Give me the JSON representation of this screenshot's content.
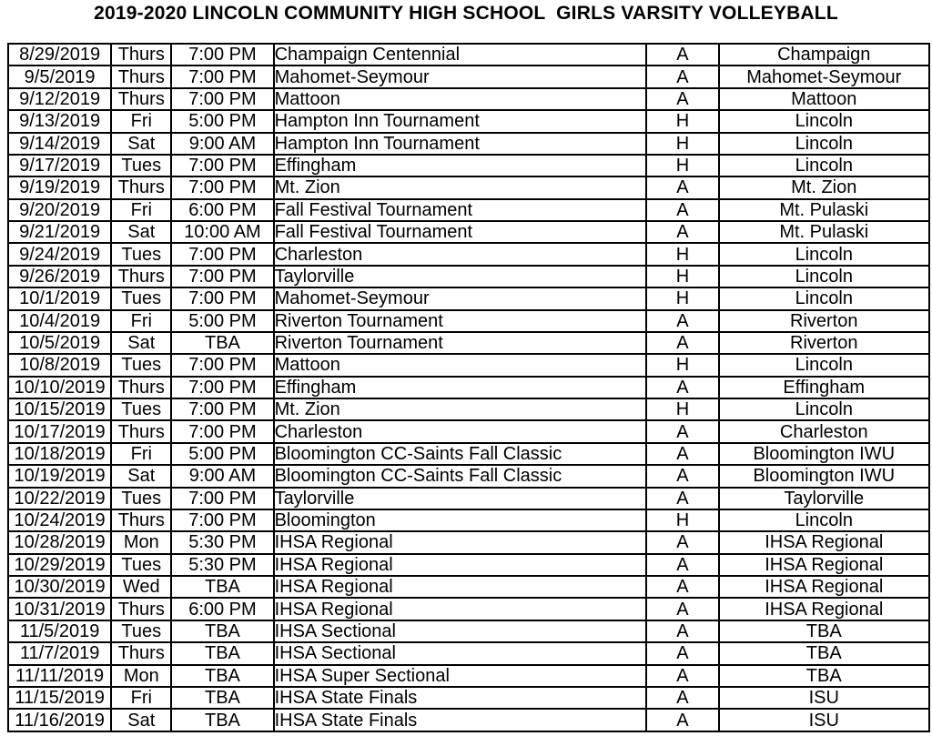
{
  "title": "2019-2020 LINCOLN COMMUNITY HIGH SCHOOL  GIRLS VARSITY VOLLEYBALL",
  "schedule": {
    "rows": [
      [
        "8/29/2019",
        "Thurs",
        "7:00 PM",
        "Champaign Centennial",
        "A",
        "Champaign"
      ],
      [
        "9/5/2019",
        "Thurs",
        "7:00 PM",
        "Mahomet-Seymour",
        "A",
        "Mahomet-Seymour"
      ],
      [
        "9/12/2019",
        "Thurs",
        "7:00 PM",
        "Mattoon",
        "A",
        "Mattoon"
      ],
      [
        "9/13/2019",
        "Fri",
        "5:00 PM",
        "Hampton Inn Tournament",
        "H",
        "Lincoln"
      ],
      [
        "9/14/2019",
        "Sat",
        "9:00 AM",
        "Hampton Inn Tournament",
        "H",
        "Lincoln"
      ],
      [
        "9/17/2019",
        "Tues",
        "7:00 PM",
        "Effingham",
        "H",
        "Lincoln"
      ],
      [
        "9/19/2019",
        "Thurs",
        "7:00 PM",
        "Mt. Zion",
        "A",
        "Mt. Zion"
      ],
      [
        "9/20/2019",
        "Fri",
        "6:00 PM",
        "Fall Festival Tournament",
        "A",
        "Mt. Pulaski"
      ],
      [
        "9/21/2019",
        "Sat",
        "10:00 AM",
        "Fall Festival Tournament",
        "A",
        "Mt. Pulaski"
      ],
      [
        "9/24/2019",
        "Tues",
        "7:00 PM",
        "Charleston",
        "H",
        "Lincoln"
      ],
      [
        "9/26/2019",
        "Thurs",
        "7:00 PM",
        "Taylorville",
        "H",
        "Lincoln"
      ],
      [
        "10/1/2019",
        "Tues",
        "7:00 PM",
        "Mahomet-Seymour",
        "H",
        "Lincoln"
      ],
      [
        "10/4/2019",
        "Fri",
        "5:00 PM",
        "Riverton Tournament",
        "A",
        "Riverton"
      ],
      [
        "10/5/2019",
        "Sat",
        "TBA",
        "Riverton Tournament",
        "A",
        "Riverton"
      ],
      [
        "10/8/2019",
        "Tues",
        "7:00 PM",
        "Mattoon",
        "H",
        "Lincoln"
      ],
      [
        "10/10/2019",
        "Thurs",
        "7:00 PM",
        "Effingham",
        "A",
        "Effingham"
      ],
      [
        "10/15/2019",
        "Tues",
        "7:00 PM",
        "Mt. Zion",
        "H",
        "Lincoln"
      ],
      [
        "10/17/2019",
        "Thurs",
        "7:00 PM",
        "Charleston",
        "A",
        "Charleston"
      ],
      [
        "10/18/2019",
        "Fri",
        "5:00 PM",
        "Bloomington CC-Saints Fall Classic",
        "A",
        "Bloomington IWU"
      ],
      [
        "10/19/2019",
        "Sat",
        "9:00 AM",
        "Bloomington CC-Saints Fall Classic",
        "A",
        "Bloomington IWU"
      ],
      [
        "10/22/2019",
        "Tues",
        "7:00 PM",
        "Taylorville",
        "A",
        "Taylorville"
      ],
      [
        "10/24/2019",
        "Thurs",
        "7:00 PM",
        "Bloomington",
        "H",
        "Lincoln"
      ],
      [
        "10/28/2019",
        "Mon",
        "5:30 PM",
        "IHSA Regional",
        "A",
        "IHSA Regional"
      ],
      [
        "10/29/2019",
        "Tues",
        "5:30 PM",
        "IHSA Regional",
        "A",
        "IHSA Regional"
      ],
      [
        "10/30/2019",
        "Wed",
        "TBA",
        "IHSA Regional",
        "A",
        "IHSA Regional"
      ],
      [
        "10/31/2019",
        "Thurs",
        "6:00 PM",
        "IHSA Regional",
        "A",
        "IHSA Regional"
      ],
      [
        "11/5/2019",
        "Tues",
        "TBA",
        "IHSA Sectional",
        "A",
        "TBA"
      ],
      [
        "11/7/2019",
        "Thurs",
        "TBA",
        "IHSA Sectional",
        "A",
        "TBA"
      ],
      [
        "11/11/2019",
        "Mon",
        "TBA",
        "IHSA Super Sectional",
        "A",
        "TBA"
      ],
      [
        "11/15/2019",
        "Fri",
        "TBA",
        "IHSA State Finals",
        "A",
        "ISU"
      ],
      [
        "11/16/2019",
        "Sat",
        "TBA",
        "IHSA State Finals",
        "A",
        "ISU"
      ]
    ]
  }
}
